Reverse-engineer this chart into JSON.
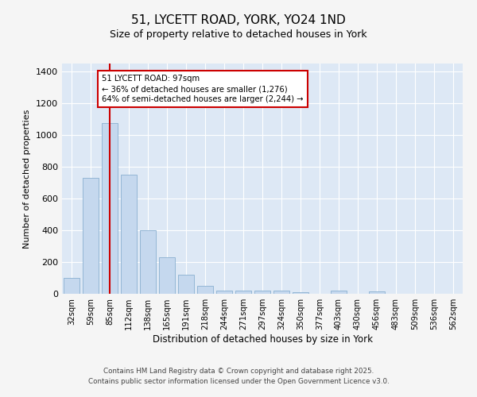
{
  "title1": "51, LYCETT ROAD, YORK, YO24 1ND",
  "title2": "Size of property relative to detached houses in York",
  "xlabel": "Distribution of detached houses by size in York",
  "ylabel": "Number of detached properties",
  "categories": [
    "32sqm",
    "59sqm",
    "85sqm",
    "112sqm",
    "138sqm",
    "165sqm",
    "191sqm",
    "218sqm",
    "244sqm",
    "271sqm",
    "297sqm",
    "324sqm",
    "350sqm",
    "377sqm",
    "403sqm",
    "430sqm",
    "456sqm",
    "483sqm",
    "509sqm",
    "536sqm",
    "562sqm"
  ],
  "values": [
    100,
    730,
    1075,
    750,
    400,
    230,
    120,
    50,
    20,
    20,
    20,
    20,
    10,
    0,
    20,
    0,
    15,
    0,
    0,
    0,
    0
  ],
  "bar_color": "#c5d8ee",
  "bar_edge_color": "#8ab0d0",
  "red_line_index": 2,
  "annotation_text": "51 LYCETT ROAD: 97sqm\n← 36% of detached houses are smaller (1,276)\n64% of semi-detached houses are larger (2,244) →",
  "annotation_box_color": "#ffffff",
  "annotation_box_edge_color": "#cc0000",
  "red_line_color": "#cc0000",
  "ylim": [
    0,
    1450
  ],
  "yticks": [
    0,
    200,
    400,
    600,
    800,
    1000,
    1200,
    1400
  ],
  "fig_bg": "#f5f5f5",
  "plot_bg": "#dde8f5",
  "footer_line1": "Contains HM Land Registry data © Crown copyright and database right 2025.",
  "footer_line2": "Contains public sector information licensed under the Open Government Licence v3.0."
}
